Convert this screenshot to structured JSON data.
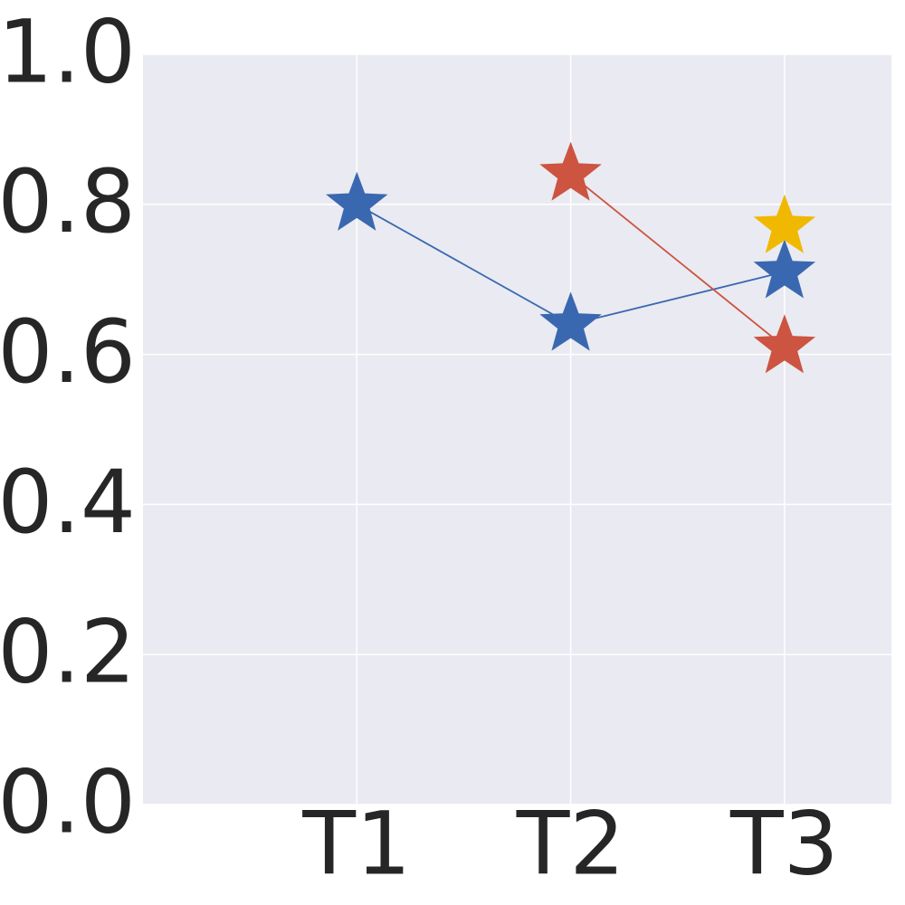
{
  "chart_data": {
    "type": "line",
    "x": [
      1,
      2,
      3
    ],
    "xlim": [
      0,
      3.5
    ],
    "xticks": [
      {
        "value": 1,
        "label": "T1"
      },
      {
        "value": 2,
        "label": "T2"
      },
      {
        "value": 3,
        "label": "T3"
      }
    ],
    "ylim": [
      0,
      1.0
    ],
    "yticks": [
      {
        "value": 0,
        "label": "0.0"
      },
      {
        "value": 0.2,
        "label": "0.2"
      },
      {
        "value": 0.4,
        "label": "0.4"
      },
      {
        "value": 0.6,
        "label": "0.6"
      },
      {
        "value": 0.8,
        "label": "0.8"
      },
      {
        "value": 1.0,
        "label": "1.0"
      }
    ],
    "grid": true,
    "marker": "star",
    "series": [
      {
        "color": "#3a68b0",
        "values": [
          0.8,
          0.64,
          0.71
        ]
      },
      {
        "color": "#cc5440",
        "values": [
          null,
          0.84,
          0.61
        ]
      },
      {
        "color": "#f0b800",
        "values": [
          null,
          null,
          0.77
        ]
      }
    ]
  }
}
